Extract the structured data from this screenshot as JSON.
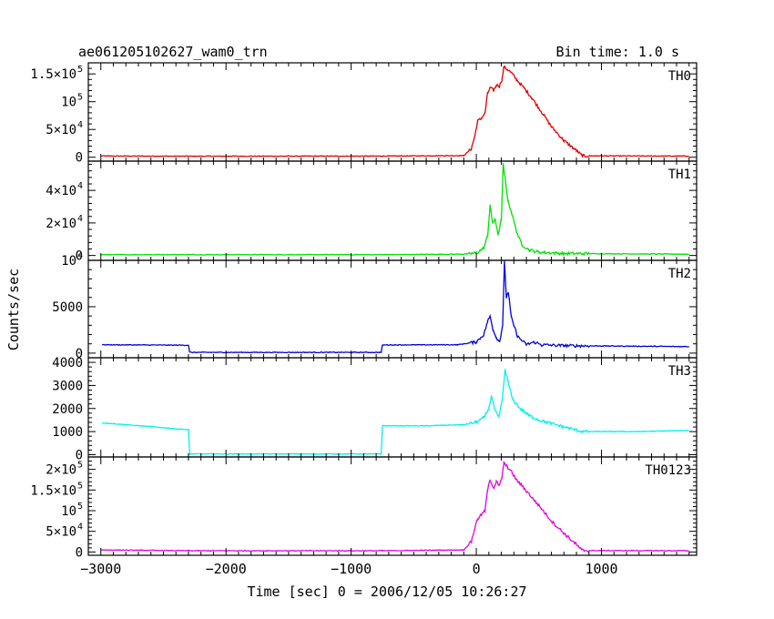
{
  "header": {
    "title": "ae061205102627_wam0_trn",
    "bin_time": "Bin time: 1.0 s"
  },
  "chart_data": {
    "type": "line",
    "ylabel": "Counts/sec",
    "xlabel": "Time [sec] 0 = 2006/12/05 10:26:27",
    "xlim": [
      -3100,
      1760
    ],
    "x_ticks": [
      -3000,
      -2000,
      -1000,
      0,
      1000
    ],
    "x_tick_labels": [
      "−3000",
      "−2000",
      "−1000",
      "0",
      "1000"
    ],
    "panels": [
      {
        "name": "TH0",
        "color": "#e00000",
        "ylim": [
          -7000,
          170000
        ],
        "y_ticks": [
          {
            "value": 0,
            "mant": "0",
            "exp": ""
          },
          {
            "value": 50000,
            "mant": "5×10",
            "exp": "4"
          },
          {
            "value": 100000,
            "mant": "10",
            "exp": "5"
          },
          {
            "value": 150000,
            "mant": "1.5×10",
            "exp": "5"
          }
        ],
        "points": [
          [
            -3000,
            2200
          ],
          [
            -2300,
            1800
          ],
          [
            -750,
            2000
          ],
          [
            -100,
            3000
          ],
          [
            -40,
            15000
          ],
          [
            -10,
            40000
          ],
          [
            10,
            65000
          ],
          [
            40,
            70000
          ],
          [
            70,
            80000
          ],
          [
            90,
            115000
          ],
          [
            110,
            125000
          ],
          [
            140,
            120000
          ],
          [
            160,
            130000
          ],
          [
            185,
            128000
          ],
          [
            205,
            140000
          ],
          [
            220,
            162000
          ],
          [
            250,
            158000
          ],
          [
            280,
            152000
          ],
          [
            320,
            140000
          ],
          [
            380,
            125000
          ],
          [
            450,
            105000
          ],
          [
            520,
            82000
          ],
          [
            600,
            55000
          ],
          [
            700,
            30000
          ],
          [
            800,
            12000
          ],
          [
            840,
            4000
          ],
          [
            860,
            2500
          ],
          [
            1700,
            2000
          ]
        ]
      },
      {
        "name": "TH1",
        "color": "#00e000",
        "ylim": [
          -3000,
          58000
        ],
        "y_ticks": [
          {
            "value": 0,
            "mant": "0",
            "exp": ""
          },
          {
            "value": 20000,
            "mant": "2×10",
            "exp": "4"
          },
          {
            "value": 40000,
            "mant": "4×10",
            "exp": "4"
          }
        ],
        "points": [
          [
            -3000,
            500
          ],
          [
            -750,
            500
          ],
          [
            -100,
            800
          ],
          [
            0,
            1500
          ],
          [
            60,
            4500
          ],
          [
            90,
            12000
          ],
          [
            110,
            31000
          ],
          [
            130,
            20000
          ],
          [
            150,
            22000
          ],
          [
            175,
            13000
          ],
          [
            200,
            22000
          ],
          [
            215,
            56000
          ],
          [
            235,
            44000
          ],
          [
            255,
            33000
          ],
          [
            280,
            27000
          ],
          [
            320,
            15000
          ],
          [
            360,
            7000
          ],
          [
            420,
            3500
          ],
          [
            500,
            2000
          ],
          [
            700,
            1200
          ],
          [
            1700,
            800
          ]
        ]
      },
      {
        "name": "TH2",
        "color": "#0000d8",
        "ylim": [
          -500,
          10000
        ],
        "y_ticks": [
          {
            "value": 0,
            "mant": "0",
            "exp": ""
          },
          {
            "value": 5000,
            "mant": "5000",
            "exp": ""
          },
          {
            "value": 10000,
            "mant": "10",
            "exp": "4"
          }
        ],
        "points": [
          [
            -2990,
            900
          ],
          [
            -2300,
            850
          ],
          [
            -2290,
            80
          ],
          [
            -760,
            80
          ],
          [
            -750,
            880
          ],
          [
            -150,
            900
          ],
          [
            0,
            1200
          ],
          [
            60,
            2000
          ],
          [
            90,
            3400
          ],
          [
            110,
            4000
          ],
          [
            135,
            2500
          ],
          [
            160,
            1700
          ],
          [
            185,
            1200
          ],
          [
            210,
            3000
          ],
          [
            225,
            9800
          ],
          [
            240,
            6000
          ],
          [
            255,
            6600
          ],
          [
            280,
            3800
          ],
          [
            330,
            1800
          ],
          [
            400,
            900
          ],
          [
            460,
            1200
          ],
          [
            520,
            900
          ],
          [
            700,
            800
          ],
          [
            1700,
            700
          ]
        ]
      },
      {
        "name": "TH3",
        "color": "#00f0f0",
        "ylim": [
          -100,
          4200
        ],
        "y_ticks": [
          {
            "value": 0,
            "mant": "0",
            "exp": ""
          },
          {
            "value": 1000,
            "mant": "1000",
            "exp": ""
          },
          {
            "value": 2000,
            "mant": "2000",
            "exp": ""
          },
          {
            "value": 3000,
            "mant": "3000",
            "exp": ""
          },
          {
            "value": 4000,
            "mant": "4000",
            "exp": ""
          }
        ],
        "points": [
          [
            -2990,
            1380
          ],
          [
            -2800,
            1300
          ],
          [
            -2300,
            1080
          ],
          [
            -2290,
            30
          ],
          [
            -760,
            30
          ],
          [
            -750,
            1250
          ],
          [
            -400,
            1250
          ],
          [
            -100,
            1300
          ],
          [
            0,
            1400
          ],
          [
            60,
            1600
          ],
          [
            100,
            2000
          ],
          [
            120,
            2550
          ],
          [
            150,
            1900
          ],
          [
            180,
            1600
          ],
          [
            210,
            2500
          ],
          [
            230,
            3700
          ],
          [
            260,
            3000
          ],
          [
            290,
            2400
          ],
          [
            350,
            2000
          ],
          [
            420,
            1700
          ],
          [
            500,
            1500
          ],
          [
            700,
            1200
          ],
          [
            850,
            1000
          ],
          [
            1000,
            1000
          ],
          [
            1300,
            1000
          ],
          [
            1700,
            1050
          ]
        ]
      },
      {
        "name": "TH0123",
        "color": "#e000e0",
        "ylim": [
          -8000,
          230000
        ],
        "y_ticks": [
          {
            "value": 0,
            "mant": "0",
            "exp": ""
          },
          {
            "value": 50000,
            "mant": "5×10",
            "exp": "4"
          },
          {
            "value": 100000,
            "mant": "10",
            "exp": "5"
          },
          {
            "value": 150000,
            "mant": "1.5×10",
            "exp": "5"
          },
          {
            "value": 200000,
            "mant": "2×10",
            "exp": "5"
          }
        ],
        "points": [
          [
            -3000,
            5000
          ],
          [
            -2300,
            3000
          ],
          [
            -750,
            3000
          ],
          [
            -100,
            5000
          ],
          [
            -40,
            25000
          ],
          [
            -10,
            60000
          ],
          [
            10,
            80000
          ],
          [
            40,
            90000
          ],
          [
            70,
            100000
          ],
          [
            90,
            150000
          ],
          [
            110,
            175000
          ],
          [
            140,
            155000
          ],
          [
            160,
            170000
          ],
          [
            185,
            160000
          ],
          [
            205,
            180000
          ],
          [
            220,
            215000
          ],
          [
            250,
            205000
          ],
          [
            280,
            195000
          ],
          [
            320,
            175000
          ],
          [
            380,
            155000
          ],
          [
            450,
            130000
          ],
          [
            520,
            105000
          ],
          [
            600,
            75000
          ],
          [
            700,
            45000
          ],
          [
            800,
            18000
          ],
          [
            840,
            5000
          ],
          [
            860,
            3500
          ],
          [
            1700,
            3000
          ]
        ]
      }
    ]
  }
}
